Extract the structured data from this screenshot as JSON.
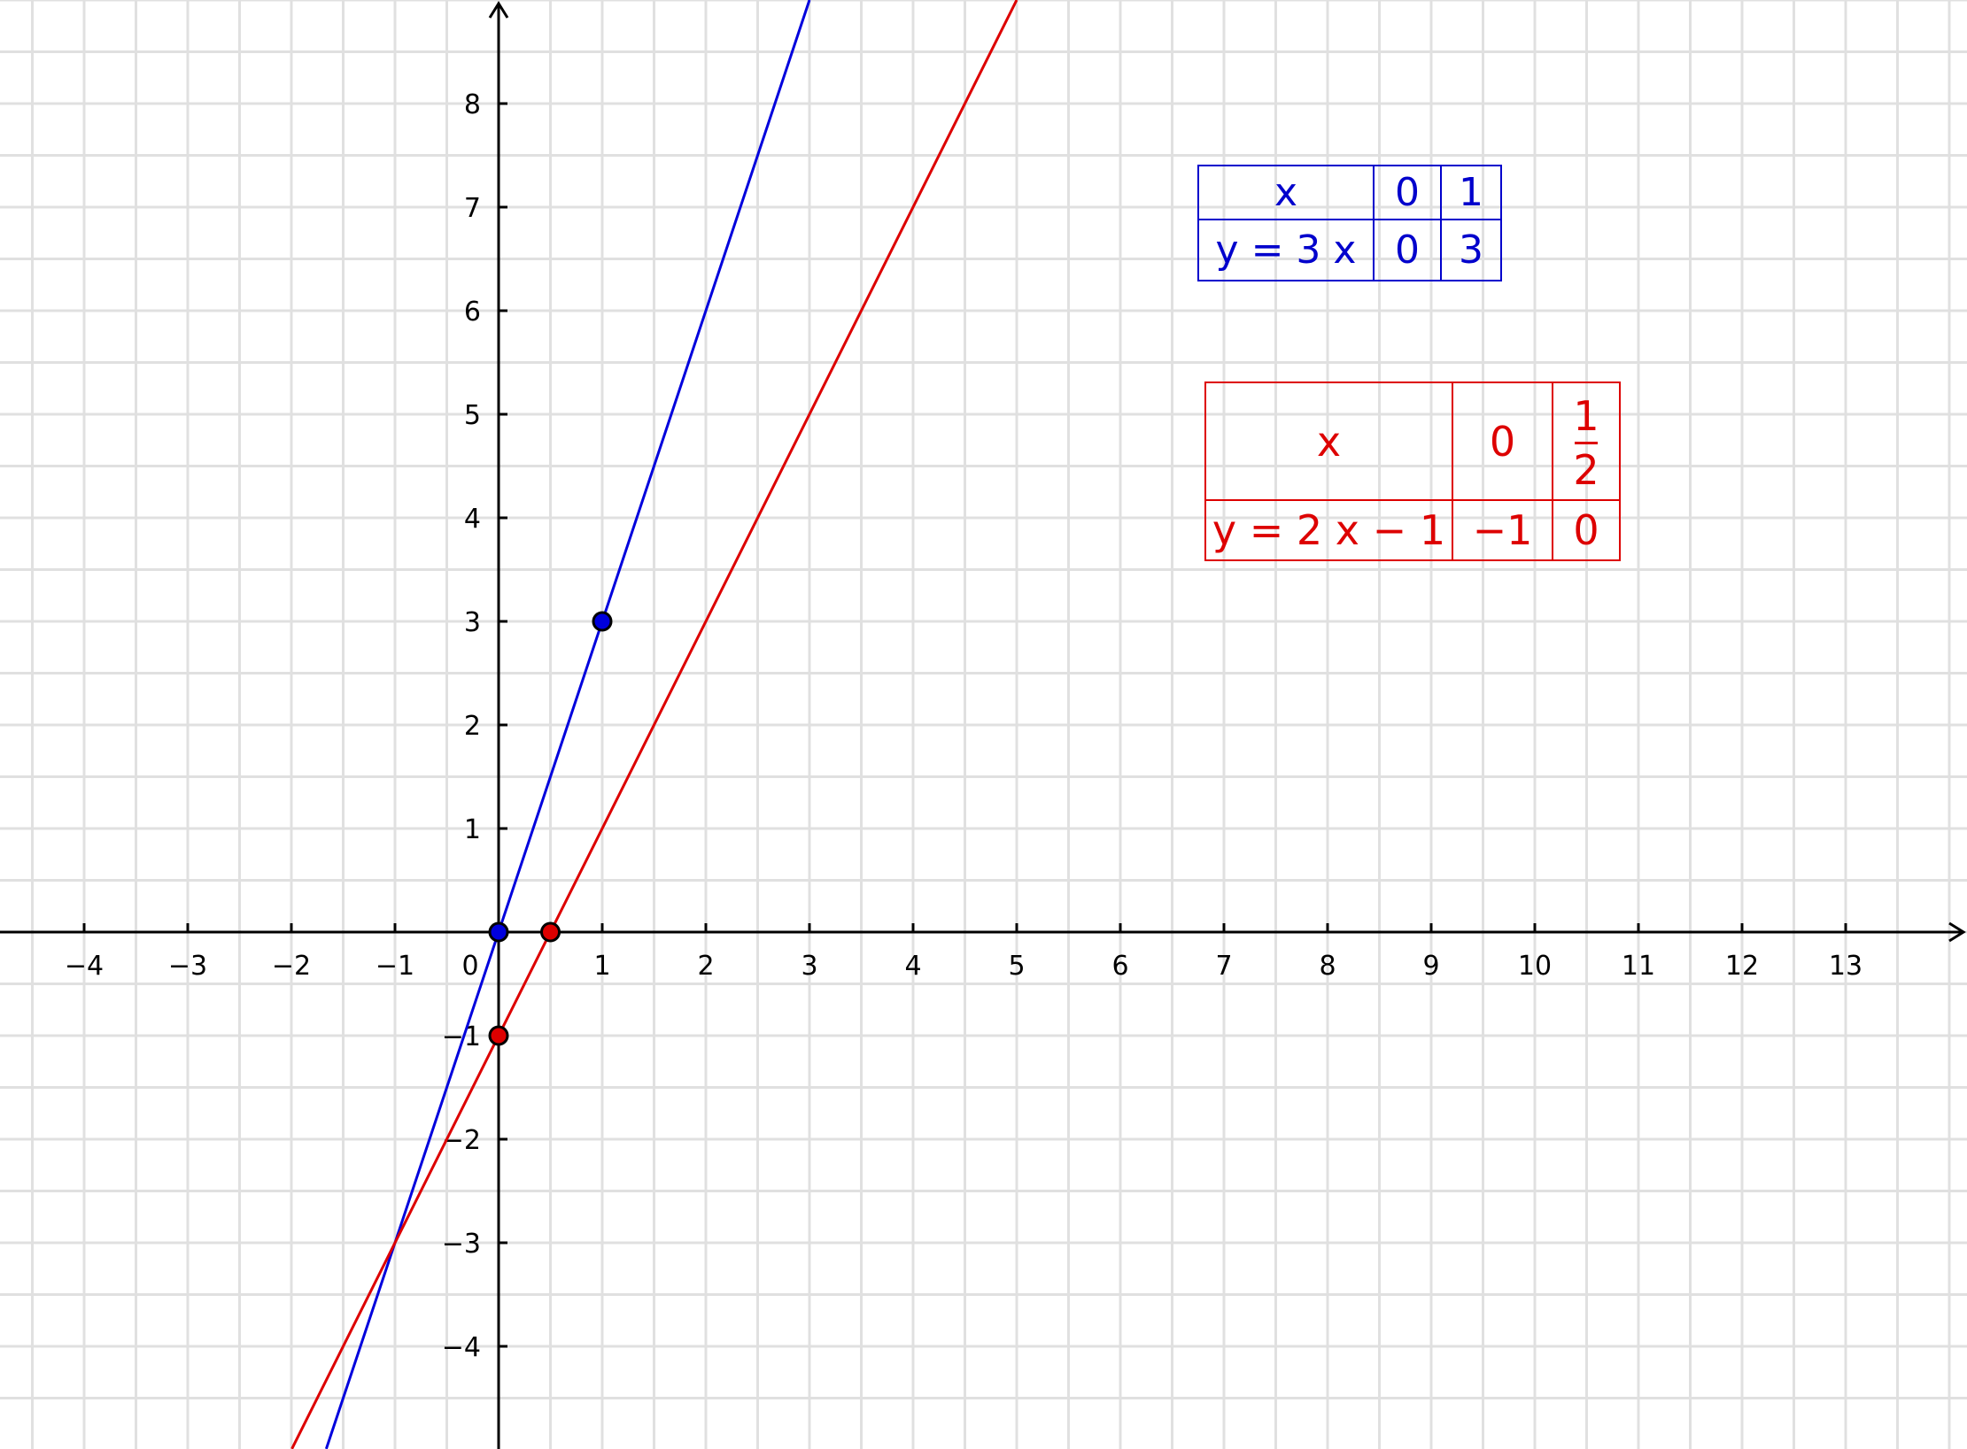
{
  "chart_data": {
    "type": "line",
    "xlim": [
      -4.81,
      14.17
    ],
    "ylim": [
      -4.99,
      9.0
    ],
    "grid": true,
    "minor_grid_step": 0.5,
    "x_ticks": [
      -4,
      -3,
      -2,
      -1,
      0,
      1,
      2,
      3,
      4,
      5,
      6,
      7,
      8,
      9,
      10,
      11,
      12,
      13
    ],
    "y_ticks": [
      -4,
      -3,
      -2,
      -1,
      1,
      2,
      3,
      4,
      5,
      6,
      7,
      8
    ],
    "x_tick_labels": [
      "−4",
      "−3",
      "−2",
      "−1",
      "0",
      "1",
      "2",
      "3",
      "4",
      "5",
      "6",
      "7",
      "8",
      "9",
      "10",
      "11",
      "12",
      "13"
    ],
    "y_tick_labels": [
      "−4",
      "−3",
      "−2",
      "−1",
      "1",
      "2",
      "3",
      "4",
      "5",
      "6",
      "7",
      "8"
    ],
    "series": [
      {
        "slope": 3,
        "intercept": 0,
        "color": "#0000dd",
        "points": [
          [
            0,
            0
          ],
          [
            1,
            3
          ]
        ]
      },
      {
        "slope": 2,
        "intercept": -1,
        "color": "#dd0000",
        "points": [
          [
            0,
            -1
          ],
          [
            0.5,
            0
          ]
        ]
      }
    ],
    "colors": {
      "grid": "#e0e0e0",
      "axis": "#000000"
    }
  },
  "tables": {
    "blue": {
      "header": [
        "x",
        "0",
        "1"
      ],
      "row": [
        "y = 3 x",
        "0",
        "3"
      ],
      "color": "#0000cc"
    },
    "red": {
      "header": [
        "x",
        "0"
      ],
      "fraction": {
        "num": "1",
        "den": "2"
      },
      "row": [
        "y = 2 x − 1",
        "−1",
        "0"
      ],
      "color": "#dd0000"
    }
  }
}
